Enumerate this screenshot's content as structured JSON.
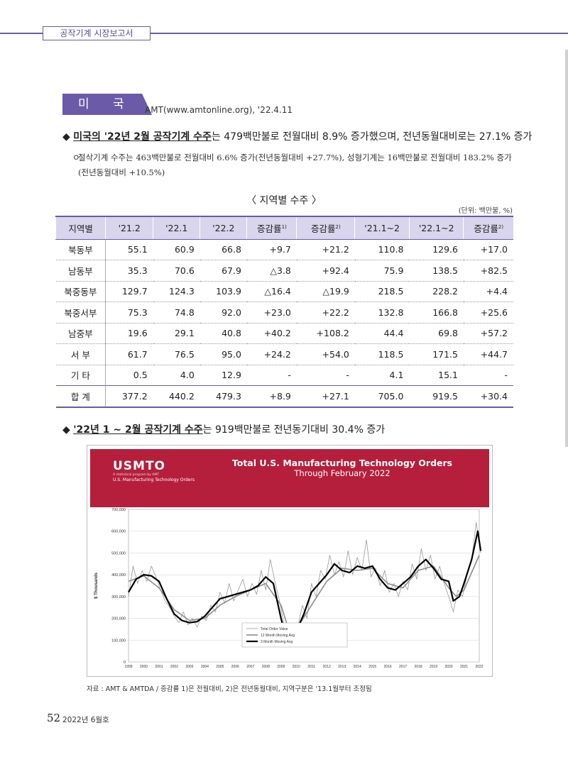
{
  "header": {
    "running_title": "공작기계 시장보고서"
  },
  "section": {
    "tag": "미 국",
    "source": "AMT(www.amtonline.org), '22.4.11"
  },
  "bullet1": {
    "marker": "◆",
    "lead": "미국의 '22년 2월 공작기계 수주",
    "rest": "는 479백만불로 전월대비 8.9% 증가했으며, 전년동월대비로는 27.1% 증가"
  },
  "subpoint": {
    "marker": "ㅇ",
    "text": "절삭기계 수주는 463백만불로 전월대비 6.6% 증가(전년동월대비 +27.7%), 성형기계는 16백만불로 전월대비 183.2% 증가(전년동월대비 +10.5%)"
  },
  "table": {
    "title": "〈 지역별 수주 〉",
    "unit": "(단위: 백만불, %)",
    "headers": [
      {
        "t": "지역별",
        "s": ""
      },
      {
        "t": "'21.2",
        "s": ""
      },
      {
        "t": "'22.1",
        "s": ""
      },
      {
        "t": "'22.2",
        "s": ""
      },
      {
        "t": "증감률",
        "s": "1)"
      },
      {
        "t": "증감률",
        "s": "2)"
      },
      {
        "t": "'21.1~2",
        "s": ""
      },
      {
        "t": "'22.1~2",
        "s": ""
      },
      {
        "t": "증감률",
        "s": "2)"
      }
    ],
    "rows": [
      [
        "북동부",
        "55.1",
        "60.9",
        "66.8",
        "+9.7",
        "+21.2",
        "110.8",
        "129.6",
        "+17.0"
      ],
      [
        "남동부",
        "35.3",
        "70.6",
        "67.9",
        "△3.8",
        "+92.4",
        "75.9",
        "138.5",
        "+82.5"
      ],
      [
        "북중동부",
        "129.7",
        "124.3",
        "103.9",
        "△16.4",
        "△19.9",
        "218.5",
        "228.2",
        "+4.4"
      ],
      [
        "북중서부",
        "75.3",
        "74.8",
        "92.0",
        "+23.0",
        "+22.2",
        "132.8",
        "166.8",
        "+25.6"
      ],
      [
        "남중부",
        "19.6",
        "29.1",
        "40.8",
        "+40.2",
        "+108.2",
        "44.4",
        "69.8",
        "+57.2"
      ],
      [
        "서 부",
        "61.7",
        "76.5",
        "95.0",
        "+24.2",
        "+54.0",
        "118.5",
        "171.5",
        "+44.7"
      ],
      [
        "기 타",
        "0.5",
        "4.0",
        "12.9",
        "-",
        "-",
        "4.1",
        "15.1",
        "-"
      ]
    ],
    "total": [
      "합 계",
      "377.2",
      "440.2",
      "479.3",
      "+8.9",
      "+27.1",
      "705.0",
      "919.5",
      "+30.4"
    ]
  },
  "bullet2": {
    "marker": "◆",
    "lead": "'22년 1 ~ 2월 공작기계 수주",
    "rest": "는 919백만불로 전년동기대비 30.4% 증가"
  },
  "chart_banner": {
    "logo": "USMTO",
    "logo_tagline": "A statistical program by AMT",
    "logo_sub": "U.S. Manufacturing Technology Orders",
    "title": "Total U.S. Manufacturing Technology Orders",
    "subtitle": "Through February 2022"
  },
  "chart_data": {
    "type": "line",
    "title": "Total U.S. Manufacturing Technology Orders",
    "subtitle": "Through February 2022",
    "ylabel": "$ Thousands",
    "ylim": [
      0,
      700000
    ],
    "yticks": [
      "0",
      "100,000",
      "200,000",
      "300,000",
      "400,000",
      "500,000",
      "600,000",
      "700,000"
    ],
    "xticks": [
      "1999",
      "2000",
      "2001",
      "2002",
      "2003",
      "2004",
      "2005",
      "2006",
      "2007",
      "2008",
      "2009",
      "2010",
      "2011",
      "2012",
      "2013",
      "2014",
      "2015",
      "2016",
      "2017",
      "2018",
      "2019",
      "2020",
      "2021",
      "2022"
    ],
    "legend": [
      "Total Order Value",
      "12 Month Moving Avg",
      "3 Month Moving Avg"
    ],
    "legend_position": "bottom-center",
    "colors": {
      "total": "#9a9a9a",
      "avg12": "#8c8c8c",
      "avg3": "#000000"
    },
    "series": [
      {
        "name": "3 Month Moving Avg",
        "x": [
          1999.0,
          1999.5,
          2000.0,
          2000.5,
          2001.0,
          2001.5,
          2002.0,
          2002.5,
          2003.0,
          2003.5,
          2004.0,
          2004.5,
          2005.0,
          2005.5,
          2006.0,
          2006.5,
          2007.0,
          2007.5,
          2008.0,
          2008.5,
          2009.0,
          2009.3,
          2009.7,
          2010.0,
          2010.5,
          2011.0,
          2011.5,
          2012.0,
          2012.5,
          2013.0,
          2013.5,
          2014.0,
          2014.5,
          2015.0,
          2015.5,
          2016.0,
          2016.5,
          2017.0,
          2017.5,
          2018.0,
          2018.5,
          2019.0,
          2019.5,
          2020.0,
          2020.3,
          2020.7,
          2021.0,
          2021.5,
          2021.9,
          2022.1
        ],
        "values": [
          320000,
          380000,
          400000,
          395000,
          370000,
          290000,
          220000,
          190000,
          180000,
          185000,
          210000,
          250000,
          290000,
          300000,
          310000,
          320000,
          330000,
          350000,
          390000,
          360000,
          200000,
          120000,
          115000,
          140000,
          220000,
          320000,
          360000,
          400000,
          450000,
          420000,
          410000,
          440000,
          430000,
          440000,
          380000,
          340000,
          330000,
          360000,
          390000,
          440000,
          470000,
          430000,
          380000,
          370000,
          280000,
          300000,
          360000,
          470000,
          600000,
          510000
        ]
      },
      {
        "name": "12 Month Moving Avg",
        "x": [
          1999.0,
          2000.0,
          2001.0,
          2002.0,
          2003.0,
          2004.0,
          2005.0,
          2006.0,
          2007.0,
          2008.0,
          2009.0,
          2009.5,
          2010.0,
          2011.0,
          2012.0,
          2013.0,
          2014.0,
          2015.0,
          2016.0,
          2017.0,
          2018.0,
          2019.0,
          2020.0,
          2020.5,
          2021.0,
          2022.0
        ],
        "values": [
          370000,
          395000,
          340000,
          240000,
          190000,
          200000,
          260000,
          300000,
          330000,
          360000,
          260000,
          150000,
          150000,
          260000,
          370000,
          430000,
          420000,
          430000,
          360000,
          340000,
          420000,
          440000,
          340000,
          300000,
          330000,
          490000
        ]
      },
      {
        "name": "Total Order Value",
        "x": [
          1999.0,
          1999.3,
          1999.6,
          1999.9,
          2000.2,
          2000.5,
          2000.8,
          2001.1,
          2001.4,
          2001.7,
          2002.0,
          2002.3,
          2002.6,
          2002.9,
          2003.2,
          2003.5,
          2003.8,
          2004.1,
          2004.4,
          2004.7,
          2005.0,
          2005.3,
          2005.6,
          2005.9,
          2006.2,
          2006.5,
          2006.8,
          2007.1,
          2007.4,
          2007.7,
          2008.0,
          2008.3,
          2008.6,
          2008.9,
          2009.2,
          2009.5,
          2009.8,
          2010.1,
          2010.4,
          2010.7,
          2011.0,
          2011.3,
          2011.6,
          2011.9,
          2012.2,
          2012.5,
          2012.8,
          2013.1,
          2013.4,
          2013.7,
          2014.0,
          2014.3,
          2014.6,
          2014.9,
          2015.2,
          2015.5,
          2015.8,
          2016.1,
          2016.4,
          2016.7,
          2017.0,
          2017.3,
          2017.6,
          2017.9,
          2018.2,
          2018.5,
          2018.8,
          2019.1,
          2019.4,
          2019.7,
          2020.0,
          2020.3,
          2020.6,
          2020.9,
          2021.2,
          2021.5,
          2021.8,
          2022.1
        ],
        "values": [
          300000,
          440000,
          360000,
          420000,
          370000,
          440000,
          390000,
          330000,
          280000,
          250000,
          210000,
          180000,
          230000,
          170000,
          200000,
          160000,
          210000,
          190000,
          260000,
          230000,
          320000,
          270000,
          360000,
          280000,
          330000,
          380000,
          300000,
          360000,
          310000,
          420000,
          330000,
          470000,
          370000,
          280000,
          170000,
          100000,
          130000,
          160000,
          260000,
          200000,
          360000,
          300000,
          420000,
          380000,
          490000,
          400000,
          460000,
          390000,
          510000,
          400000,
          480000,
          420000,
          560000,
          390000,
          430000,
          350000,
          420000,
          320000,
          360000,
          300000,
          370000,
          330000,
          450000,
          380000,
          520000,
          420000,
          490000,
          380000,
          440000,
          360000,
          300000,
          230000,
          330000,
          300000,
          400000,
          470000,
          640000,
          500000
        ]
      }
    ]
  },
  "caption": "자료 : AMT & AMTDA / 증감률 1)은 전월대비, 2)은 전년동월대비, 지역구분은 '13.1월부터 조정됨",
  "footer": {
    "page": "52",
    "issue": "2022년 6월호"
  }
}
